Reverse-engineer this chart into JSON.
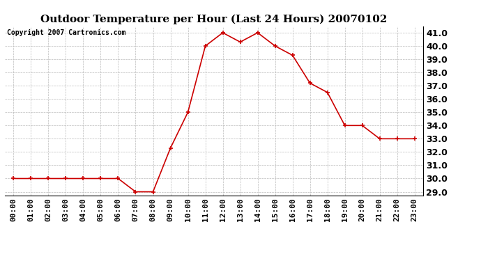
{
  "title": "Outdoor Temperature per Hour (Last 24 Hours) 20070102",
  "copyright_text": "Copyright 2007 Cartronics.com",
  "hours": [
    "00:00",
    "01:00",
    "02:00",
    "03:00",
    "04:00",
    "05:00",
    "06:00",
    "07:00",
    "08:00",
    "09:00",
    "10:00",
    "11:00",
    "12:00",
    "13:00",
    "14:00",
    "15:00",
    "16:00",
    "17:00",
    "18:00",
    "19:00",
    "20:00",
    "21:00",
    "22:00",
    "23:00"
  ],
  "temps": [
    30.0,
    30.0,
    30.0,
    30.0,
    30.0,
    30.0,
    30.0,
    29.0,
    29.0,
    32.3,
    35.0,
    40.0,
    41.0,
    40.3,
    41.0,
    40.0,
    39.3,
    37.2,
    36.5,
    34.0,
    34.0,
    33.0,
    33.0,
    33.0
  ],
  "ylim_min": 28.7,
  "ylim_max": 41.5,
  "yticks": [
    29.0,
    30.0,
    31.0,
    32.0,
    33.0,
    34.0,
    35.0,
    36.0,
    37.0,
    38.0,
    39.0,
    40.0,
    41.0
  ],
  "line_color": "#cc0000",
  "marker": "+",
  "marker_color": "#cc0000",
  "bg_color": "#ffffff",
  "grid_color": "#bbbbbb",
  "title_fontsize": 11,
  "copyright_fontsize": 7,
  "tick_fontsize": 8,
  "ytick_fontsize": 9
}
